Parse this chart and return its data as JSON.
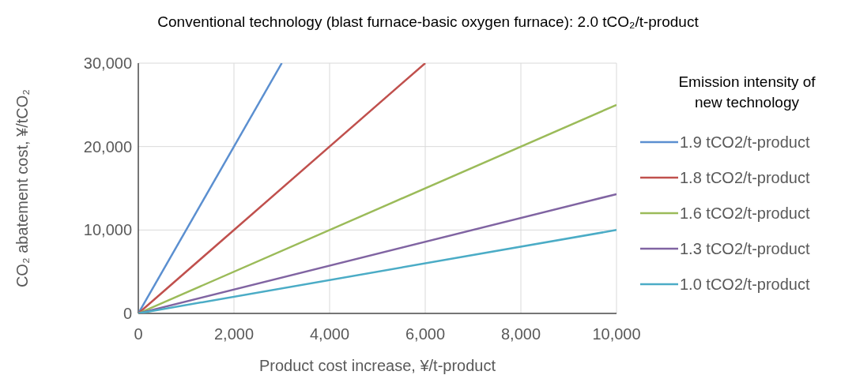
{
  "chart_data": {
    "type": "line",
    "title": "Conventional technology (blast furnace-basic oxygen furnace): 2.0 tCO₂/t-product",
    "xlabel": "Product cost increase, ¥/t-product",
    "ylabel": "CO₂ abatement cost, ¥/tCO₂",
    "legend_title": "Emission intensity of new technology",
    "xlim": [
      0,
      10000
    ],
    "ylim": [
      0,
      30000
    ],
    "xticks": [
      {
        "value": 0,
        "label": "0"
      },
      {
        "value": 2000,
        "label": "2,000"
      },
      {
        "value": 4000,
        "label": "4,000"
      },
      {
        "value": 6000,
        "label": "6,000"
      },
      {
        "value": 8000,
        "label": "8,000"
      },
      {
        "value": 10000,
        "label": "10,000"
      }
    ],
    "yticks": [
      {
        "value": 0,
        "label": "0"
      },
      {
        "value": 10000,
        "label": "10,000"
      },
      {
        "value": 20000,
        "label": "20,000"
      },
      {
        "value": 30000,
        "label": "30,000"
      }
    ],
    "grid": true,
    "legend": "right",
    "marker": "none",
    "line_style": "solid",
    "series": [
      {
        "name": "1.9 tCO2/t-product",
        "color": "#5b8fd0",
        "x": [
          0,
          3000
        ],
        "values": [
          0,
          30000
        ]
      },
      {
        "name": "1.8 tCO2/t-product",
        "color": "#c0504d",
        "x": [
          0,
          6000
        ],
        "values": [
          0,
          30000
        ]
      },
      {
        "name": "1.6 tCO2/t-product",
        "color": "#9bbb59",
        "x": [
          0,
          10000
        ],
        "values": [
          0,
          25000
        ]
      },
      {
        "name": "1.3 tCO2/t-product",
        "color": "#8064a2",
        "x": [
          0,
          10000
        ],
        "values": [
          0,
          14300
        ]
      },
      {
        "name": "1.0 tCO2/t-product",
        "color": "#4bacc6",
        "x": [
          0,
          10000
        ],
        "values": [
          0,
          10000
        ]
      }
    ]
  }
}
